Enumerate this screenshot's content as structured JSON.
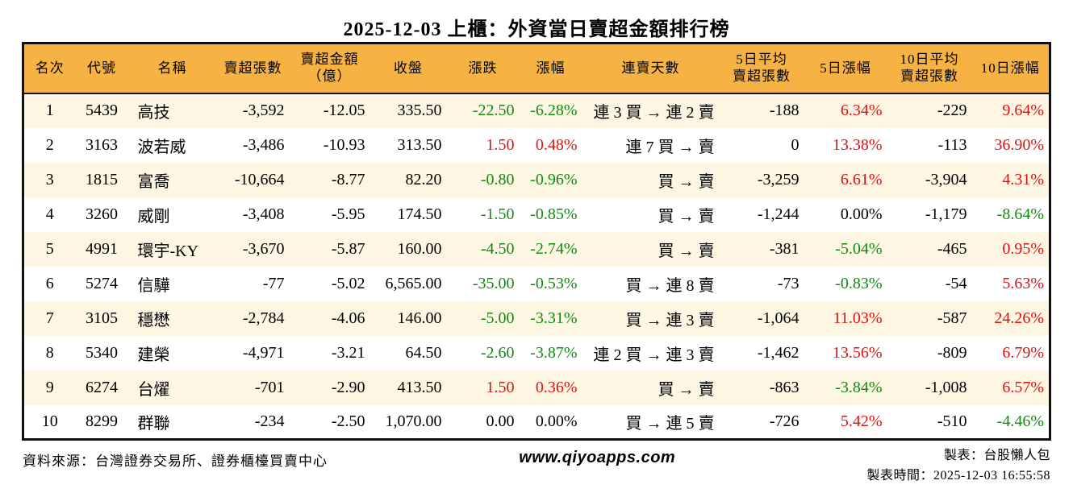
{
  "title": "2025-12-03 上櫃：外資當日賣超金額排行榜",
  "colors": {
    "header_bg": "#F6B344",
    "row_stripe_bg": "#FDF6E3",
    "up_red": "#DE1212",
    "down_green": "#128A12",
    "border": "#111111"
  },
  "table": {
    "headers": [
      {
        "lines": [
          "名次"
        ]
      },
      {
        "lines": [
          "代號"
        ]
      },
      {
        "lines": [
          "名稱"
        ]
      },
      {
        "lines": [
          "賣超張數"
        ]
      },
      {
        "lines": [
          "賣超金額",
          "（億）"
        ]
      },
      {
        "lines": [
          "收盤"
        ]
      },
      {
        "lines": [
          "漲跌"
        ]
      },
      {
        "lines": [
          "漲幅"
        ]
      },
      {
        "lines": [
          "連賣天數"
        ]
      },
      {
        "lines": [
          "5日平均",
          "賣超張數"
        ]
      },
      {
        "lines": [
          "5日漲幅"
        ]
      },
      {
        "lines": [
          "10日平均",
          "賣超張數"
        ]
      },
      {
        "lines": [
          "10日漲幅"
        ]
      }
    ],
    "rows": [
      {
        "cells": [
          {
            "v": "1"
          },
          {
            "v": "5439"
          },
          {
            "v": "高技"
          },
          {
            "v": "-3,592"
          },
          {
            "v": "-12.05"
          },
          {
            "v": "335.50"
          },
          {
            "v": "-22.50",
            "c": "down"
          },
          {
            "v": "-6.28%",
            "c": "down"
          },
          {
            "v": "連 3 買 → 連 2 賣"
          },
          {
            "v": "-188"
          },
          {
            "v": "6.34%",
            "c": "up"
          },
          {
            "v": "-229"
          },
          {
            "v": "9.64%",
            "c": "up"
          }
        ]
      },
      {
        "cells": [
          {
            "v": "2"
          },
          {
            "v": "3163"
          },
          {
            "v": "波若威"
          },
          {
            "v": "-3,486"
          },
          {
            "v": "-10.93"
          },
          {
            "v": "313.50"
          },
          {
            "v": "1.50",
            "c": "up"
          },
          {
            "v": "0.48%",
            "c": "up"
          },
          {
            "v": "連 7 買 → 賣"
          },
          {
            "v": "0"
          },
          {
            "v": "13.38%",
            "c": "up"
          },
          {
            "v": "-113"
          },
          {
            "v": "36.90%",
            "c": "up"
          }
        ]
      },
      {
        "cells": [
          {
            "v": "3"
          },
          {
            "v": "1815"
          },
          {
            "v": "富喬"
          },
          {
            "v": "-10,664"
          },
          {
            "v": "-8.77"
          },
          {
            "v": "82.20"
          },
          {
            "v": "-0.80",
            "c": "down"
          },
          {
            "v": "-0.96%",
            "c": "down"
          },
          {
            "v": "買 → 賣"
          },
          {
            "v": "-3,259"
          },
          {
            "v": "6.61%",
            "c": "up"
          },
          {
            "v": "-3,904"
          },
          {
            "v": "4.31%",
            "c": "up"
          }
        ]
      },
      {
        "cells": [
          {
            "v": "4"
          },
          {
            "v": "3260"
          },
          {
            "v": "威剛"
          },
          {
            "v": "-3,408"
          },
          {
            "v": "-5.95"
          },
          {
            "v": "174.50"
          },
          {
            "v": "-1.50",
            "c": "down"
          },
          {
            "v": "-0.85%",
            "c": "down"
          },
          {
            "v": "買 → 賣"
          },
          {
            "v": "-1,244"
          },
          {
            "v": "0.00%",
            "c": "flat"
          },
          {
            "v": "-1,179"
          },
          {
            "v": "-8.64%",
            "c": "down"
          }
        ]
      },
      {
        "cells": [
          {
            "v": "5"
          },
          {
            "v": "4991"
          },
          {
            "v": "環宇-KY"
          },
          {
            "v": "-3,670"
          },
          {
            "v": "-5.87"
          },
          {
            "v": "160.00"
          },
          {
            "v": "-4.50",
            "c": "down"
          },
          {
            "v": "-2.74%",
            "c": "down"
          },
          {
            "v": "買 → 賣"
          },
          {
            "v": "-381"
          },
          {
            "v": "-5.04%",
            "c": "down"
          },
          {
            "v": "-465"
          },
          {
            "v": "0.95%",
            "c": "up"
          }
        ]
      },
      {
        "cells": [
          {
            "v": "6"
          },
          {
            "v": "5274"
          },
          {
            "v": "信驊"
          },
          {
            "v": "-77"
          },
          {
            "v": "-5.02"
          },
          {
            "v": "6,565.00"
          },
          {
            "v": "-35.00",
            "c": "down"
          },
          {
            "v": "-0.53%",
            "c": "down"
          },
          {
            "v": "買 → 連 8 賣"
          },
          {
            "v": "-73"
          },
          {
            "v": "-0.83%",
            "c": "down"
          },
          {
            "v": "-54"
          },
          {
            "v": "5.63%",
            "c": "up"
          }
        ]
      },
      {
        "cells": [
          {
            "v": "7"
          },
          {
            "v": "3105"
          },
          {
            "v": "穩懋"
          },
          {
            "v": "-2,784"
          },
          {
            "v": "-4.06"
          },
          {
            "v": "146.00"
          },
          {
            "v": "-5.00",
            "c": "down"
          },
          {
            "v": "-3.31%",
            "c": "down"
          },
          {
            "v": "買 → 連 3 賣"
          },
          {
            "v": "-1,064"
          },
          {
            "v": "11.03%",
            "c": "up"
          },
          {
            "v": "-587"
          },
          {
            "v": "24.26%",
            "c": "up"
          }
        ]
      },
      {
        "cells": [
          {
            "v": "8"
          },
          {
            "v": "5340"
          },
          {
            "v": "建榮"
          },
          {
            "v": "-4,971"
          },
          {
            "v": "-3.21"
          },
          {
            "v": "64.50"
          },
          {
            "v": "-2.60",
            "c": "down"
          },
          {
            "v": "-3.87%",
            "c": "down"
          },
          {
            "v": "連 2 買 → 連 3 賣"
          },
          {
            "v": "-1,462"
          },
          {
            "v": "13.56%",
            "c": "up"
          },
          {
            "v": "-809"
          },
          {
            "v": "6.79%",
            "c": "up"
          }
        ]
      },
      {
        "cells": [
          {
            "v": "9"
          },
          {
            "v": "6274"
          },
          {
            "v": "台燿"
          },
          {
            "v": "-701"
          },
          {
            "v": "-2.90"
          },
          {
            "v": "413.50"
          },
          {
            "v": "1.50",
            "c": "up"
          },
          {
            "v": "0.36%",
            "c": "up"
          },
          {
            "v": "買 → 賣"
          },
          {
            "v": "-863"
          },
          {
            "v": "-3.84%",
            "c": "down"
          },
          {
            "v": "-1,008"
          },
          {
            "v": "6.57%",
            "c": "up"
          }
        ]
      },
      {
        "cells": [
          {
            "v": "10"
          },
          {
            "v": "8299"
          },
          {
            "v": "群聯"
          },
          {
            "v": "-234"
          },
          {
            "v": "-2.50"
          },
          {
            "v": "1,070.00"
          },
          {
            "v": "0.00",
            "c": "flat"
          },
          {
            "v": "0.00%",
            "c": "flat"
          },
          {
            "v": "買 → 連 5 賣"
          },
          {
            "v": "-726"
          },
          {
            "v": "5.42%",
            "c": "up"
          },
          {
            "v": "-510"
          },
          {
            "v": "-4.46%",
            "c": "down"
          }
        ]
      }
    ]
  },
  "footer": {
    "source": "資料來源：台灣證券交易所、證券櫃檯買賣中心",
    "website": "www.qiyoapps.com",
    "maker": "製表：台股懶人包",
    "made_time": "製表時間：2025-12-03 16:55:58"
  }
}
